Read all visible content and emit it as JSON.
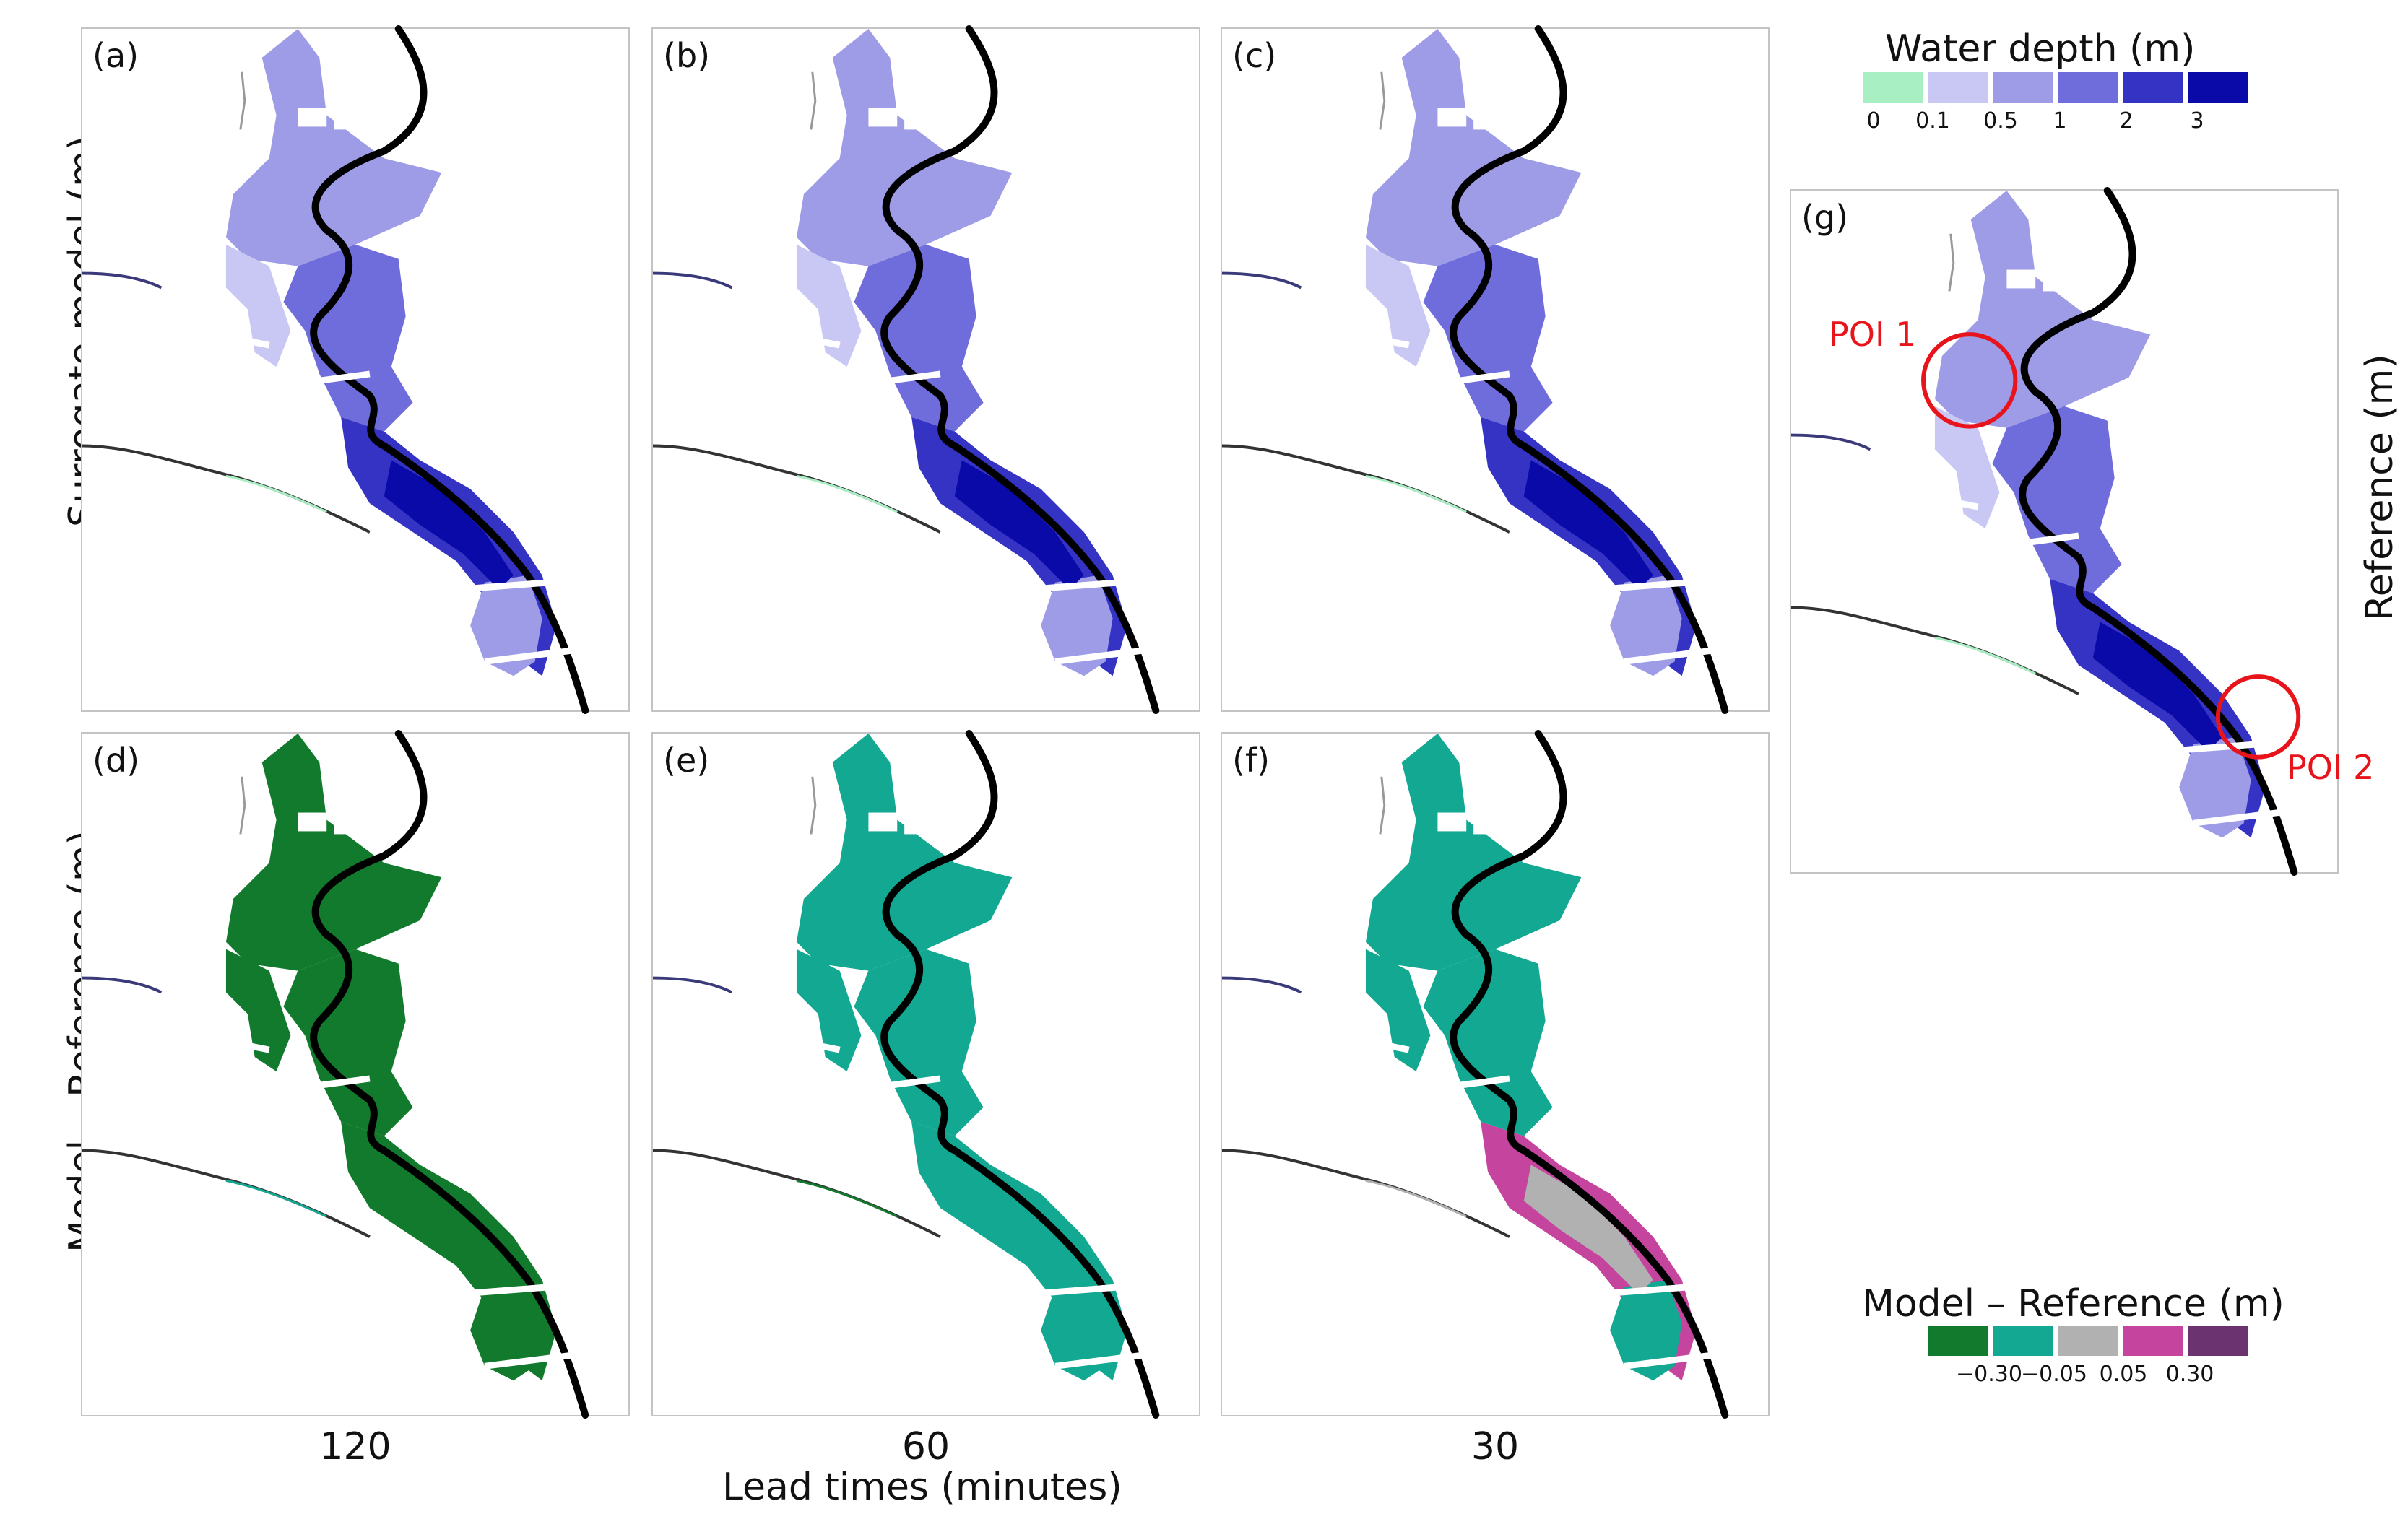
{
  "panels": [
    {
      "label": "(a)",
      "kind": "depth"
    },
    {
      "label": "(b)",
      "kind": "depth"
    },
    {
      "label": "(c)",
      "kind": "depth"
    },
    {
      "label": "(d)",
      "kind": "diff-low"
    },
    {
      "label": "(e)",
      "kind": "diff-mid"
    },
    {
      "label": "(f)",
      "kind": "diff-mixed"
    },
    {
      "label": "(g)",
      "kind": "depth"
    }
  ],
  "rows": {
    "top": "Surrogate model (m)",
    "bottom": "Model – Reference (m)",
    "right": "Reference (m)"
  },
  "columns": [
    "120",
    "60",
    "30"
  ],
  "xaxis_title": "Lead times (minutes)",
  "poi": [
    "POI 1",
    "POI 2"
  ],
  "legend_depth": {
    "title": "Water depth (m)",
    "colors": [
      "#a8f0c4",
      "#c9c8f5",
      "#9e9ce6",
      "#6f6ddb",
      "#3433c4",
      "#0a0aa8"
    ],
    "ticks": [
      "0",
      "0.1",
      "0.5",
      "1",
      "2",
      "3"
    ]
  },
  "legend_diff": {
    "title": "Model – Reference (m)",
    "colors": [
      "#117a2c",
      "#13a892",
      "#b1b1b1",
      "#c4449e",
      "#6b3470"
    ],
    "ticks": [
      "−0.30",
      "−0.05",
      "0.05",
      "0.30"
    ]
  }
}
